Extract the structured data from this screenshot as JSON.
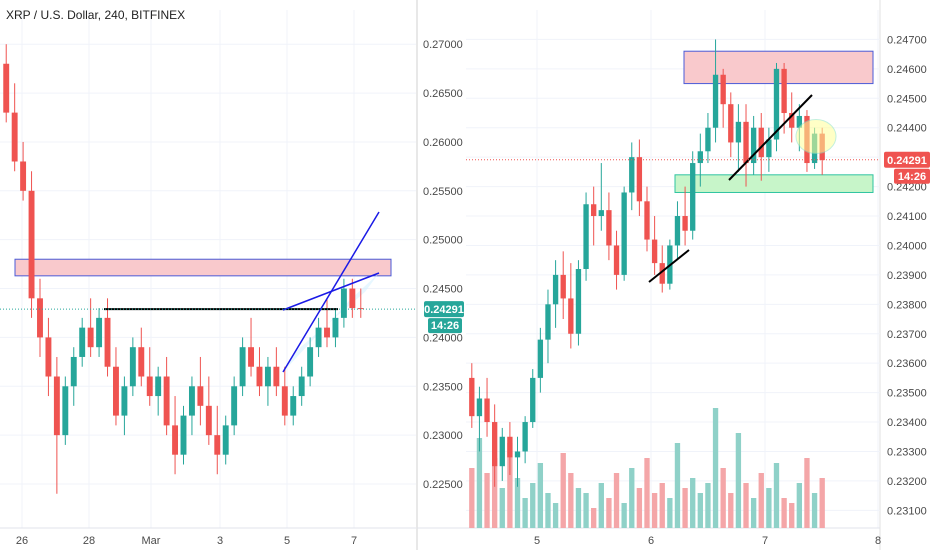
{
  "colors": {
    "up": "#26a69a",
    "down": "#ef5350",
    "zone_red": "#f9c9cc",
    "zone_red_edge": "#4a5bd8",
    "zone_green": "#c7f5c9",
    "trend": "#000000",
    "channel": "#1a1ae6",
    "price_green": "#26a69a",
    "price_red": "#ef5350"
  },
  "chart_data": [
    {
      "type": "candlestick",
      "title": "XRP / U.S. Dollar, 240, BITFINEX",
      "x_ticks": [
        "26",
        "28",
        "Mar",
        "3",
        "5",
        "7"
      ],
      "y_ticks": [
        "0.27000",
        "0.26500",
        "0.26000",
        "0.25500",
        "0.25000",
        "0.24500",
        "0.24000",
        "0.23500",
        "0.23000",
        "0.22500"
      ],
      "ylim": [
        0.2205,
        0.2735
      ],
      "last_price": "0.24291",
      "countdown": "14:26",
      "price_badge_color": "green",
      "resistance_zone": [
        0.2463,
        0.248
      ],
      "channel_lines": true,
      "horizontal_line": 0.2429,
      "candles": [
        [
          0.268,
          0.27,
          0.262,
          0.263
        ],
        [
          0.263,
          0.266,
          0.257,
          0.258
        ],
        [
          0.258,
          0.26,
          0.254,
          0.255
        ],
        [
          0.255,
          0.257,
          0.242,
          0.244
        ],
        [
          0.244,
          0.246,
          0.238,
          0.24
        ],
        [
          0.24,
          0.242,
          0.234,
          0.236
        ],
        [
          0.236,
          0.238,
          0.224,
          0.23
        ],
        [
          0.23,
          0.236,
          0.229,
          0.235
        ],
        [
          0.235,
          0.239,
          0.233,
          0.238
        ],
        [
          0.238,
          0.242,
          0.237,
          0.241
        ],
        [
          0.241,
          0.244,
          0.238,
          0.239
        ],
        [
          0.239,
          0.243,
          0.238,
          0.242
        ],
        [
          0.242,
          0.244,
          0.236,
          0.237
        ],
        [
          0.237,
          0.239,
          0.231,
          0.232
        ],
        [
          0.232,
          0.236,
          0.23,
          0.235
        ],
        [
          0.235,
          0.24,
          0.234,
          0.239
        ],
        [
          0.239,
          0.241,
          0.235,
          0.236
        ],
        [
          0.236,
          0.239,
          0.233,
          0.234
        ],
        [
          0.234,
          0.237,
          0.232,
          0.236
        ],
        [
          0.236,
          0.238,
          0.23,
          0.231
        ],
        [
          0.231,
          0.234,
          0.226,
          0.228
        ],
        [
          0.228,
          0.233,
          0.227,
          0.232
        ],
        [
          0.232,
          0.236,
          0.23,
          0.235
        ],
        [
          0.235,
          0.238,
          0.231,
          0.233
        ],
        [
          0.233,
          0.236,
          0.229,
          0.23
        ],
        [
          0.23,
          0.233,
          0.226,
          0.228
        ],
        [
          0.228,
          0.232,
          0.227,
          0.231
        ],
        [
          0.231,
          0.236,
          0.23,
          0.235
        ],
        [
          0.235,
          0.24,
          0.234,
          0.239
        ],
        [
          0.239,
          0.242,
          0.236,
          0.237
        ],
        [
          0.237,
          0.239,
          0.234,
          0.235
        ],
        [
          0.235,
          0.238,
          0.233,
          0.237
        ],
        [
          0.237,
          0.239,
          0.234,
          0.235
        ],
        [
          0.235,
          0.237,
          0.231,
          0.232
        ],
        [
          0.232,
          0.235,
          0.231,
          0.234
        ],
        [
          0.234,
          0.237,
          0.233,
          0.236
        ],
        [
          0.236,
          0.24,
          0.235,
          0.239
        ],
        [
          0.239,
          0.242,
          0.238,
          0.241
        ],
        [
          0.241,
          0.244,
          0.239,
          0.24
        ],
        [
          0.24,
          0.243,
          0.239,
          0.242
        ],
        [
          0.242,
          0.246,
          0.241,
          0.245
        ],
        [
          0.245,
          0.246,
          0.242,
          0.243
        ],
        [
          0.243,
          0.245,
          0.242,
          0.2429
        ]
      ]
    },
    {
      "type": "candlestick",
      "x_ticks": [
        "5",
        "6",
        "7",
        "8"
      ],
      "y_ticks": [
        "0.24700",
        "0.24600",
        "0.24500",
        "0.24400",
        "0.24300",
        "0.24200",
        "0.24100",
        "0.24000",
        "0.23900",
        "0.23800",
        "0.23700",
        "0.23600",
        "0.23500",
        "0.23400",
        "0.23300",
        "0.23200",
        "0.23100"
      ],
      "ylim": [
        0.2304,
        0.248
      ],
      "last_price": "0.24291",
      "countdown": "14:26",
      "price_badge_color": "red",
      "resistance_zone": [
        0.2455,
        0.2466
      ],
      "support_zone": [
        0.2418,
        0.2424
      ],
      "highlight_circle": 0.2437,
      "trend_lines": true,
      "candles": [
        [
          0.2355,
          0.236,
          0.2338,
          0.2342
        ],
        [
          0.2342,
          0.2352,
          0.233,
          0.2348
        ],
        [
          0.2348,
          0.2355,
          0.2335,
          0.234
        ],
        [
          0.234,
          0.2346,
          0.2318,
          0.2325
        ],
        [
          0.2325,
          0.2338,
          0.232,
          0.2335
        ],
        [
          0.2335,
          0.234,
          0.2322,
          0.2328
        ],
        [
          0.2328,
          0.2335,
          0.2318,
          0.233
        ],
        [
          0.233,
          0.2342,
          0.2326,
          0.234
        ],
        [
          0.234,
          0.2358,
          0.2338,
          0.2355
        ],
        [
          0.2355,
          0.2372,
          0.235,
          0.2368
        ],
        [
          0.2368,
          0.2385,
          0.236,
          0.238
        ],
        [
          0.238,
          0.2395,
          0.2372,
          0.239
        ],
        [
          0.239,
          0.2398,
          0.2375,
          0.2382
        ],
        [
          0.2382,
          0.2394,
          0.2365,
          0.237
        ],
        [
          0.237,
          0.2395,
          0.2366,
          0.2392
        ],
        [
          0.2392,
          0.2418,
          0.2388,
          0.2414
        ],
        [
          0.2414,
          0.242,
          0.24,
          0.241
        ],
        [
          0.241,
          0.2428,
          0.2405,
          0.2412
        ],
        [
          0.2412,
          0.2418,
          0.2395,
          0.24
        ],
        [
          0.24,
          0.2405,
          0.2385,
          0.239
        ],
        [
          0.239,
          0.242,
          0.2388,
          0.2418
        ],
        [
          0.2418,
          0.2435,
          0.2412,
          0.243
        ],
        [
          0.243,
          0.2436,
          0.241,
          0.2415
        ],
        [
          0.2415,
          0.242,
          0.2398,
          0.2402
        ],
        [
          0.2402,
          0.241,
          0.239,
          0.2394
        ],
        [
          0.2394,
          0.24,
          0.2384,
          0.2387
        ],
        [
          0.2387,
          0.2402,
          0.2385,
          0.24
        ],
        [
          0.24,
          0.2415,
          0.2395,
          0.241
        ],
        [
          0.241,
          0.242,
          0.24,
          0.2405
        ],
        [
          0.2405,
          0.2432,
          0.2402,
          0.2428
        ],
        [
          0.2428,
          0.2438,
          0.242,
          0.2432
        ],
        [
          0.2432,
          0.2445,
          0.2428,
          0.244
        ],
        [
          0.244,
          0.247,
          0.2435,
          0.2458
        ],
        [
          0.2458,
          0.246,
          0.244,
          0.2448
        ],
        [
          0.2448,
          0.2452,
          0.243,
          0.2435
        ],
        [
          0.2435,
          0.2448,
          0.2425,
          0.2442
        ],
        [
          0.2442,
          0.2448,
          0.242,
          0.2428
        ],
        [
          0.2428,
          0.2444,
          0.2424,
          0.244
        ],
        [
          0.244,
          0.2445,
          0.2422,
          0.243
        ],
        [
          0.243,
          0.244,
          0.2425,
          0.2436
        ],
        [
          0.2436,
          0.2462,
          0.2432,
          0.246
        ],
        [
          0.246,
          0.2462,
          0.2438,
          0.2445
        ],
        [
          0.2445,
          0.2452,
          0.2435,
          0.244
        ],
        [
          0.244,
          0.2448,
          0.2432,
          0.2444
        ],
        [
          0.2444,
          0.2446,
          0.2425,
          0.2428
        ],
        [
          0.2428,
          0.244,
          0.2426,
          0.2438
        ],
        [
          0.2438,
          0.244,
          0.2424,
          0.2429
        ]
      ],
      "volumes": [
        60,
        90,
        55,
        70,
        40,
        85,
        50,
        30,
        45,
        65,
        35,
        25,
        75,
        55,
        40,
        35,
        20,
        45,
        30,
        55,
        25,
        60,
        40,
        70,
        35,
        45,
        30,
        85,
        40,
        50,
        35,
        45,
        120,
        60,
        35,
        95,
        45,
        30,
        55,
        40,
        65,
        30,
        25,
        45,
        70,
        35,
        50
      ]
    }
  ]
}
